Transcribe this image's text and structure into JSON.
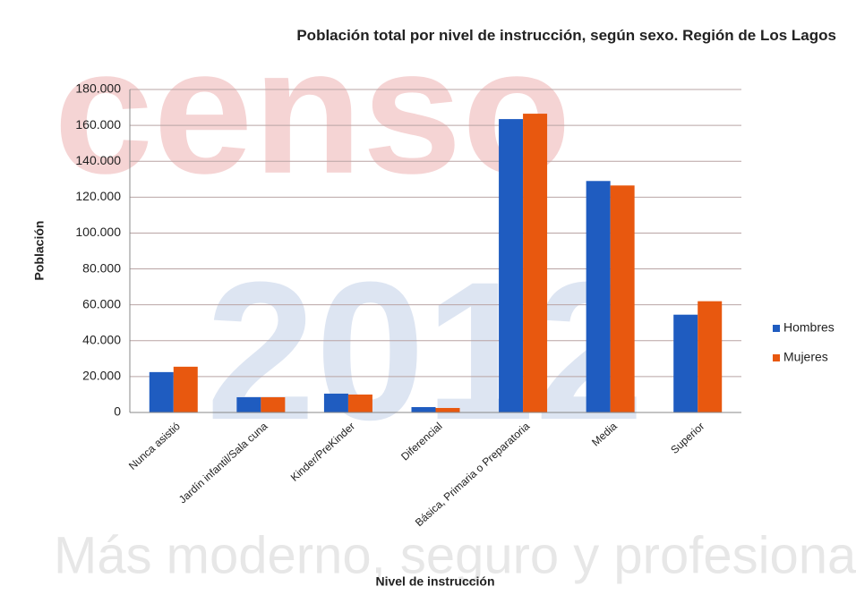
{
  "chart_data": {
    "type": "bar",
    "title": "Población total por nivel de instrucción, según sexo. Región de Los Lagos",
    "x_label": "Nivel de instrucción",
    "y_label": "Población",
    "watermark": [
      "censo",
      "2012",
      "Más moderno, seguro y profesional"
    ],
    "categories": [
      "Nunca asistió",
      "Jardín infantil/Sala cuna",
      "Kinder/PreKinder",
      "Diferencial",
      "Básica, Primaria o Preparatoria",
      "Media",
      "Superior"
    ],
    "series": [
      {
        "name": "Hombres",
        "color": "#1f5cc0",
        "values": [
          22500,
          8500,
          10500,
          3000,
          163500,
          129000,
          54500
        ]
      },
      {
        "name": "Mujeres",
        "color": "#e8580f",
        "values": [
          25500,
          8500,
          10000,
          2500,
          166500,
          126500,
          62000
        ]
      }
    ],
    "ylim": [
      0,
      180000
    ],
    "yticks": [
      0,
      {
        "value": 20000,
        "label": "20.000"
      },
      {
        "value": 40000,
        "label": "40.000"
      },
      {
        "value": 60000,
        "label": "60.000"
      },
      {
        "value": 80000,
        "label": "80.000"
      },
      {
        "value": 100000,
        "label": "100.000"
      },
      {
        "value": 120000,
        "label": "120.000"
      },
      {
        "value": 140000,
        "label": "140.000"
      },
      {
        "value": 160000,
        "label": "160.000"
      },
      {
        "value": 180000,
        "label": "180.000"
      }
    ],
    "grid": true,
    "legend": "right"
  }
}
